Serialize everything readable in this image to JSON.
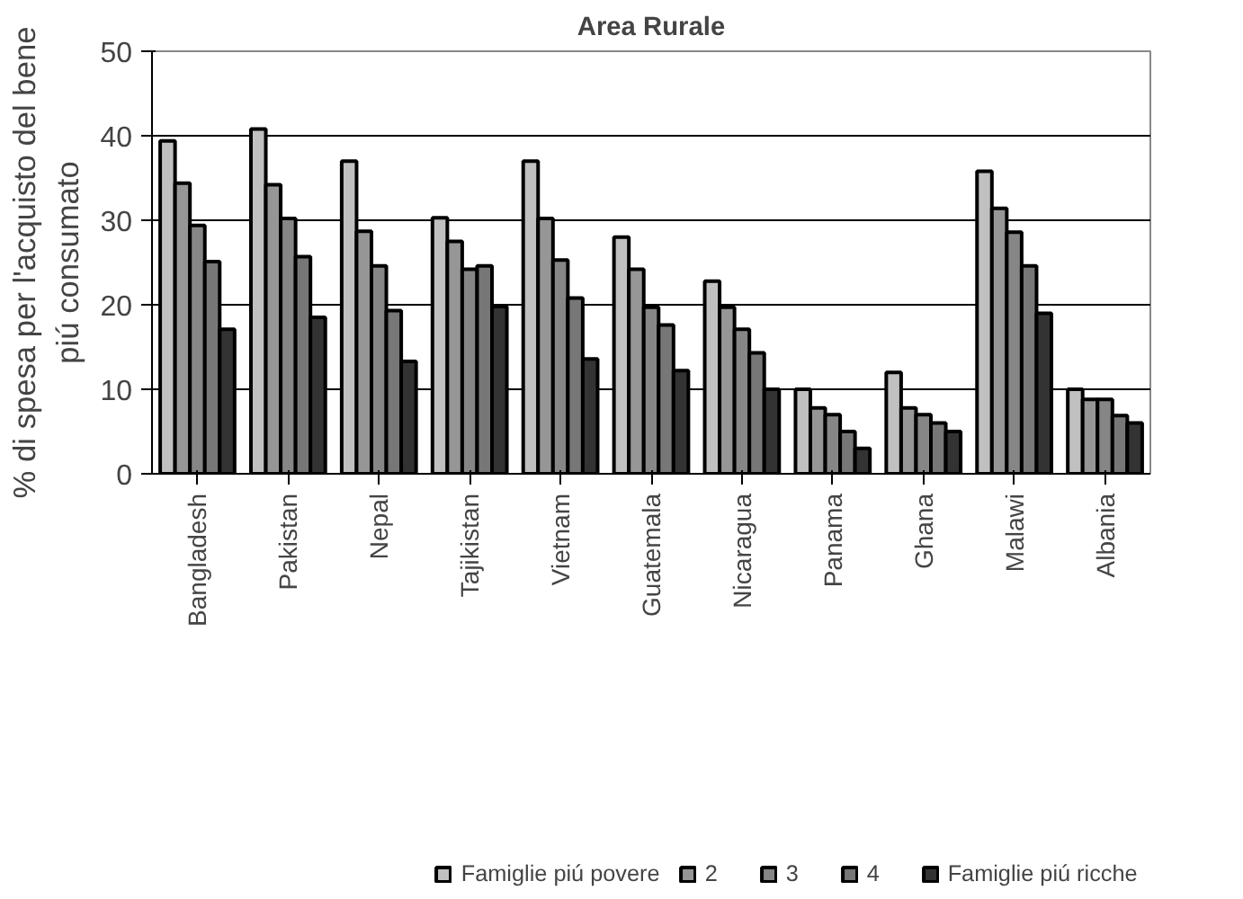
{
  "chart_data": {
    "type": "bar",
    "title": "Area Rurale",
    "ylabel": "% di spesa per l'acquisto del bene\npiú consumato",
    "categories": [
      "Bangladesh",
      "Pakistan",
      "Nepal",
      "Tajikistan",
      "Vietnam",
      "Guatemala",
      "Nicaragua",
      "Panama",
      "Ghana",
      "Malawi",
      "Albania"
    ],
    "series": [
      {
        "name": "Famiglie piú povere",
        "color": "#c0c0c0",
        "values": [
          39.4,
          40.8,
          37,
          30.3,
          37,
          28,
          22.8,
          10,
          12,
          35.8,
          10
        ]
      },
      {
        "name": "2",
        "color": "#969696",
        "values": [
          34.4,
          34.2,
          28.7,
          27.5,
          30.2,
          24.2,
          19.7,
          7.8,
          7.8,
          31.4,
          8.8
        ]
      },
      {
        "name": "3",
        "color": "#868686",
        "values": [
          29.4,
          30.2,
          24.6,
          24.2,
          25.3,
          19.7,
          17.1,
          7,
          7,
          28.6,
          8.8
        ]
      },
      {
        "name": "4",
        "color": "#777777",
        "values": [
          25.1,
          25.7,
          19.3,
          24.6,
          20.8,
          17.6,
          14.3,
          5,
          6,
          24.6,
          6.9
        ]
      },
      {
        "name": "Famiglie piú ricche",
        "color": "#333333",
        "values": [
          17.1,
          18.5,
          13.3,
          19.8,
          13.6,
          12.2,
          10,
          3,
          5,
          19,
          6
        ]
      }
    ],
    "ylim": [
      0,
      50
    ],
    "yticks": [
      0,
      10,
      20,
      30,
      40,
      50
    ],
    "grid": "y",
    "legend": "bottom"
  }
}
